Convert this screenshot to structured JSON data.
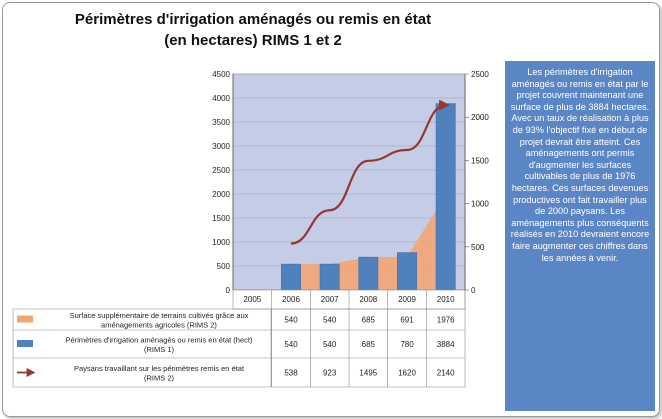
{
  "title": {
    "line1": "Périmètres d'irrigation aménagés ou remis en état",
    "line2": "(en hectares) RIMS 1 et 2"
  },
  "side_text": "Les périmètres d'irrigation aménagés ou remis en état par le projet couvrent maintenant une surface de plus de 3884 hectares. Avec un taux de réalisation à plus de 93% l'objectif fixé en début de projet devrait être atteint. Ces aménagements ont permis d'augmenter les surfaces cultivables de plus de 1976 hectares. Ces surfaces devenues productives ont fait travailler plus de 2000 paysans. Les aménagements plus conséquents réalisés en 2010 devraient encore faire augmenter ces chiffres dans les années à venir.",
  "colors": {
    "plot_bg": "#c5cde6",
    "area": "#f2a574",
    "bar": "#4f81bd",
    "line": "#953735",
    "panel": "#5b86c6"
  },
  "chart_data": {
    "type": "bar",
    "categories": [
      "2005",
      "2006",
      "2007",
      "2008",
      "2009",
      "2010"
    ],
    "y_left": {
      "min": 0,
      "max": 4500,
      "ticks": [
        0,
        500,
        1000,
        1500,
        2000,
        2500,
        3000,
        3500,
        4000,
        4500
      ]
    },
    "y_right": {
      "min": 0,
      "max": 2500,
      "ticks": [
        0,
        500,
        1000,
        1500,
        2000,
        2500
      ]
    },
    "series": [
      {
        "name": "Surface supplémentaire de terrains cultivés grâce aux aménagements agricoles (RIMS 2)",
        "kind": "area",
        "axis": "left",
        "values": [
          null,
          540,
          540,
          685,
          691,
          1976
        ]
      },
      {
        "name": "Périmètres d'irrigation aménagés ou remis en état (hect) (RIMS 1)",
        "kind": "bar",
        "axis": "left",
        "values": [
          null,
          540,
          540,
          685,
          780,
          3884
        ]
      },
      {
        "name": "Paysans travaillant sur les périmètres remis en état (RIMS 2)",
        "kind": "line",
        "axis": "right",
        "values": [
          null,
          538,
          923,
          1495,
          1620,
          2140
        ]
      }
    ],
    "legend": "data-table-below"
  }
}
